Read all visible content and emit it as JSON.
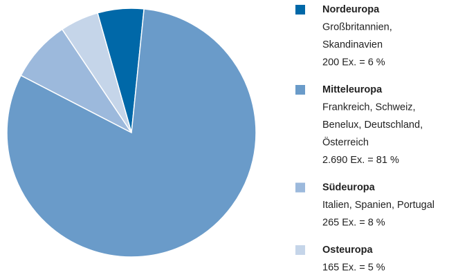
{
  "chart_data": {
    "type": "pie",
    "categories": [
      "Nordeuropa",
      "Mitteleuropa",
      "Südeuropa",
      "Osteuropa"
    ],
    "descriptions": [
      [
        "Großbritannien,",
        "Skandinavien"
      ],
      [
        "Frankreich, Schweiz,",
        "Benelux, Deutschland,",
        "Österreich"
      ],
      [
        "Italien, Spanien, Portugal"
      ],
      []
    ],
    "values": [
      6,
      81,
      8,
      5
    ],
    "value_labels": [
      "200 Ex. = 6 %",
      "2.690 Ex. = 81 %",
      "265 Ex. = 8 %",
      "165 Ex. = 5 %"
    ],
    "colors": [
      "#0068a8",
      "#6a9bc9",
      "#9cb9dc",
      "#c5d5e9"
    ]
  }
}
